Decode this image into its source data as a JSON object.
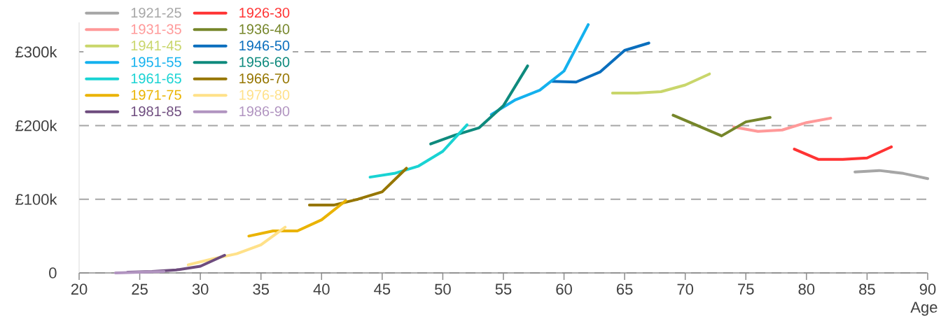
{
  "chart_data": {
    "type": "line",
    "xlabel": "Age",
    "xlim": [
      20,
      90
    ],
    "xticks": [
      20,
      25,
      30,
      35,
      40,
      45,
      50,
      55,
      60,
      65,
      70,
      75,
      80,
      85,
      90
    ],
    "ylim": [
      0,
      340
    ],
    "yticks": [
      0,
      {
        "value": 100,
        "label": "£100k"
      },
      {
        "value": 200,
        "label": "£200k"
      },
      {
        "value": 300,
        "label": "£300k"
      }
    ],
    "grid": "y",
    "legend": "top left",
    "line_style": "solid",
    "marker": "none",
    "series": [
      {
        "name": "1921-25",
        "color": "#a6a6a6",
        "x": [
          84,
          86,
          88,
          90
        ],
        "values": [
          137,
          139,
          135,
          128
        ]
      },
      {
        "name": "1926-30",
        "color": "#ff3333",
        "x": [
          79,
          81,
          83,
          85,
          87
        ],
        "values": [
          168,
          154,
          154,
          156,
          171
        ]
      },
      {
        "name": "1931-35",
        "color": "#ff9999",
        "x": [
          74,
          76,
          78,
          80,
          82
        ],
        "values": [
          198,
          192,
          194,
          204,
          210
        ]
      },
      {
        "name": "1936-40",
        "color": "#76862a",
        "x": [
          69,
          73,
          75,
          77
        ],
        "values": [
          214,
          186,
          205,
          211
        ]
      },
      {
        "name": "1941-45",
        "color": "#c9d66b",
        "x": [
          64,
          66,
          68,
          70,
          72
        ],
        "values": [
          244,
          244,
          246,
          255,
          270
        ]
      },
      {
        "name": "1946-50",
        "color": "#0a6ebd",
        "x": [
          59,
          61,
          63,
          65,
          67
        ],
        "values": [
          260,
          259,
          273,
          302,
          312
        ]
      },
      {
        "name": "1951-55",
        "color": "#14b1ee",
        "x": [
          54,
          56,
          58,
          60,
          62
        ],
        "values": [
          215,
          235,
          248,
          274,
          337
        ]
      },
      {
        "name": "1956-60",
        "color": "#0e8a7d",
        "x": [
          49,
          51,
          53,
          55,
          57
        ],
        "values": [
          175,
          187,
          197,
          227,
          281
        ]
      },
      {
        "name": "1961-65",
        "color": "#19d3d3",
        "x": [
          44,
          46,
          48,
          50,
          52
        ],
        "values": [
          130,
          135,
          145,
          165,
          201
        ]
      },
      {
        "name": "1966-70",
        "color": "#967600",
        "x": [
          39,
          41,
          43,
          45,
          47
        ],
        "values": [
          92,
          92,
          100,
          110,
          142
        ]
      },
      {
        "name": "1971-75",
        "color": "#eab300",
        "x": [
          34,
          36,
          38,
          40,
          42
        ],
        "values": [
          50,
          57,
          57,
          72,
          98
        ]
      },
      {
        "name": "1976-80",
        "color": "#ffe189",
        "x": [
          29,
          31,
          33,
          35,
          37
        ],
        "values": [
          11,
          19,
          26,
          38,
          62
        ]
      },
      {
        "name": "1981-85",
        "color": "#6e4c7e",
        "x": [
          24,
          26,
          28,
          30,
          32
        ],
        "values": [
          1,
          2,
          4,
          9,
          24
        ]
      },
      {
        "name": "1986-90",
        "color": "#b194c0",
        "x": [
          23,
          25,
          27
        ],
        "values": [
          0,
          1,
          2
        ]
      }
    ]
  }
}
